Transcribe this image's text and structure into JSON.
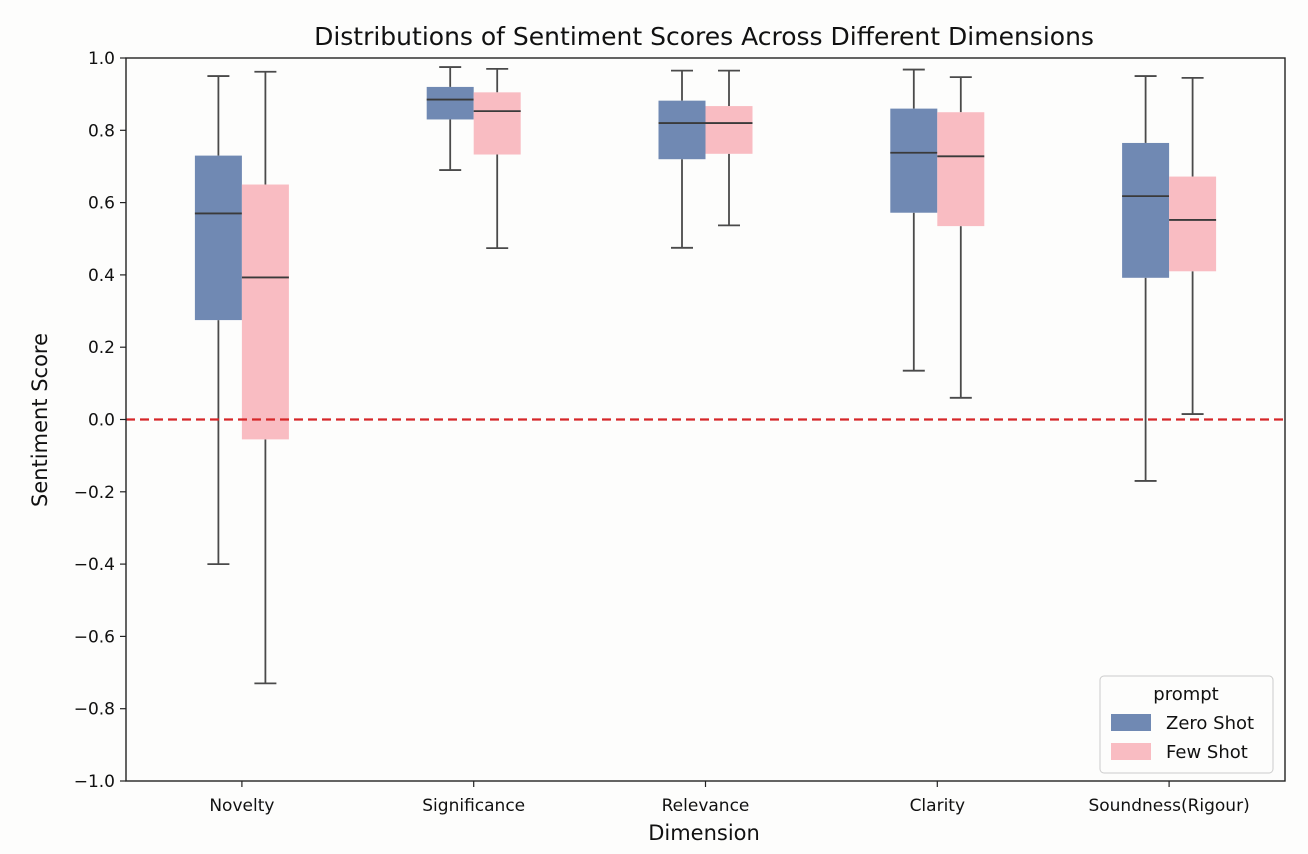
{
  "chart_data": {
    "type": "box",
    "title": "Distributions of Sentiment Scores Across Different Dimensions",
    "xlabel": "Dimension",
    "ylabel": "Sentiment Score",
    "ylim": [
      -1.0,
      1.0
    ],
    "yticks": [
      "1.0",
      "0.8",
      "0.6",
      "0.4",
      "0.2",
      "0.0",
      "−0.2",
      "−0.4",
      "−0.6",
      "−0.8",
      "−1.0"
    ],
    "ytick_values": [
      1.0,
      0.8,
      0.6,
      0.4,
      0.2,
      0.0,
      -0.2,
      -0.4,
      -0.6,
      -0.8,
      -1.0
    ],
    "categories": [
      "Novelty",
      "Significance",
      "Relevance",
      "Clarity",
      "Soundness(Rigour)"
    ],
    "reference_line": {
      "y": 0.0,
      "color": "#d62728",
      "style": "dashed"
    },
    "grid": false,
    "legend": {
      "title": "prompt",
      "placement": "lower-right"
    },
    "series": [
      {
        "name": "Zero Shot",
        "color": "#7089b3",
        "boxes": [
          {
            "whislo": -0.4,
            "q1": 0.275,
            "med": 0.57,
            "q3": 0.73,
            "whishi": 0.95
          },
          {
            "whislo": 0.69,
            "q1": 0.83,
            "med": 0.885,
            "q3": 0.92,
            "whishi": 0.975
          },
          {
            "whislo": 0.475,
            "q1": 0.72,
            "med": 0.82,
            "q3": 0.882,
            "whishi": 0.965
          },
          {
            "whislo": 0.135,
            "q1": 0.572,
            "med": 0.738,
            "q3": 0.86,
            "whishi": 0.968
          },
          {
            "whislo": -0.17,
            "q1": 0.392,
            "med": 0.618,
            "q3": 0.765,
            "whishi": 0.95
          }
        ]
      },
      {
        "name": "Few Shot",
        "color": "#f9bcc2",
        "boxes": [
          {
            "whislo": -0.73,
            "q1": -0.055,
            "med": 0.393,
            "q3": 0.65,
            "whishi": 0.962
          },
          {
            "whislo": 0.474,
            "q1": 0.733,
            "med": 0.853,
            "q3": 0.905,
            "whishi": 0.97
          },
          {
            "whislo": 0.537,
            "q1": 0.735,
            "med": 0.82,
            "q3": 0.867,
            "whishi": 0.965
          },
          {
            "whislo": 0.06,
            "q1": 0.535,
            "med": 0.728,
            "q3": 0.85,
            "whishi": 0.947
          },
          {
            "whislo": 0.015,
            "q1": 0.41,
            "med": 0.552,
            "q3": 0.672,
            "whishi": 0.945
          }
        ]
      }
    ]
  }
}
